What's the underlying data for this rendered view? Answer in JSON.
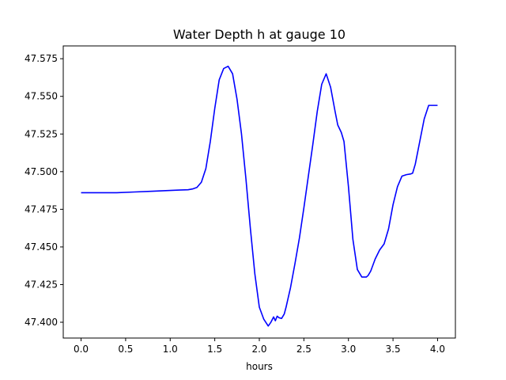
{
  "chart_data": {
    "type": "line",
    "title": "Water Depth h at gauge 10",
    "xlabel": "hours",
    "ylabel": "",
    "xlim": [
      -0.2,
      4.2
    ],
    "ylim": [
      47.3895,
      47.5835
    ],
    "xticks": [
      0.0,
      0.5,
      1.0,
      1.5,
      2.0,
      2.5,
      3.0,
      3.5,
      4.0
    ],
    "xtick_labels": [
      "0.0",
      "0.5",
      "1.0",
      "1.5",
      "2.0",
      "2.5",
      "3.0",
      "3.5",
      "4.0"
    ],
    "yticks": [
      47.4,
      47.425,
      47.45,
      47.475,
      47.5,
      47.525,
      47.55,
      47.575
    ],
    "ytick_labels": [
      "47.400",
      "47.425",
      "47.450",
      "47.475",
      "47.500",
      "47.525",
      "47.550",
      "47.575"
    ],
    "grid": false,
    "colors": {
      "line": "#0000ff",
      "axes": "#000000",
      "background": "#ffffff"
    },
    "series": [
      {
        "x": [
          0.0,
          0.2,
          0.4,
          0.6,
          0.8,
          1.0,
          1.1,
          1.2,
          1.25,
          1.3,
          1.35,
          1.4,
          1.45,
          1.5,
          1.55,
          1.6,
          1.65,
          1.7,
          1.75,
          1.8,
          1.85,
          1.9,
          1.95,
          2.0,
          2.05,
          2.1,
          2.13,
          2.16,
          2.18,
          2.2,
          2.22,
          2.25,
          2.28,
          2.3,
          2.35,
          2.4,
          2.45,
          2.5,
          2.55,
          2.6,
          2.65,
          2.7,
          2.75,
          2.8,
          2.85,
          2.88,
          2.9,
          2.92,
          2.95,
          3.0,
          3.05,
          3.1,
          3.15,
          3.2,
          3.22,
          3.25,
          3.3,
          3.35,
          3.4,
          3.45,
          3.5,
          3.55,
          3.6,
          3.65,
          3.7,
          3.72,
          3.75,
          3.8,
          3.85,
          3.9,
          3.95,
          4.0
        ],
        "y": [
          47.486,
          47.486,
          47.486,
          47.4865,
          47.487,
          47.4875,
          47.4878,
          47.488,
          47.4885,
          47.4895,
          47.493,
          47.502,
          47.52,
          47.542,
          47.561,
          47.5685,
          47.57,
          47.565,
          47.548,
          47.525,
          47.495,
          47.462,
          47.432,
          47.41,
          47.402,
          47.3975,
          47.4,
          47.4035,
          47.401,
          47.404,
          47.403,
          47.4025,
          47.4055,
          47.41,
          47.423,
          47.439,
          47.456,
          47.476,
          47.497,
          47.518,
          47.54,
          47.558,
          47.565,
          47.556,
          47.54,
          47.531,
          47.5285,
          47.526,
          47.52,
          47.49,
          47.455,
          47.435,
          47.43,
          47.43,
          47.431,
          47.434,
          47.442,
          47.448,
          47.452,
          47.462,
          47.478,
          47.49,
          47.497,
          47.498,
          47.4985,
          47.499,
          47.505,
          47.52,
          47.535,
          47.544,
          47.544,
          47.544
        ]
      }
    ]
  }
}
